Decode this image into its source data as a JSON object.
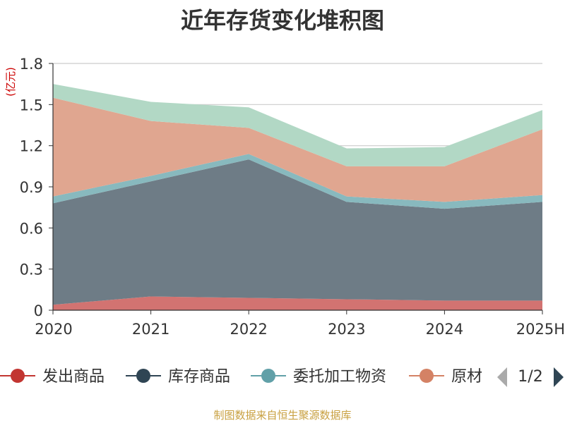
{
  "chart_data": {
    "type": "area",
    "stacked": true,
    "title": "近年存货变化堆积图",
    "y_unit": "(亿元)",
    "categories": [
      "2020",
      "2021",
      "2022",
      "2023",
      "2024",
      "2025H"
    ],
    "ylim": [
      0,
      1.8
    ],
    "yticks": [
      "0",
      "0.3",
      "0.6",
      "0.9",
      "1.2",
      "1.5",
      "1.8"
    ],
    "grid": true,
    "series": [
      {
        "name": "发出商品",
        "color": "#d27371",
        "values": [
          0.04,
          0.1,
          0.09,
          0.08,
          0.07,
          0.07
        ]
      },
      {
        "name": "库存商品",
        "color": "#6e7c86",
        "values": [
          0.74,
          0.84,
          1.01,
          0.71,
          0.67,
          0.72
        ]
      },
      {
        "name": "委托加工物资",
        "color": "#88b9be",
        "values": [
          0.05,
          0.04,
          0.04,
          0.04,
          0.05,
          0.05
        ]
      },
      {
        "name": "原材料",
        "color": "#e0a690",
        "values": [
          0.72,
          0.4,
          0.19,
          0.22,
          0.26,
          0.48
        ]
      },
      {
        "name": "",
        "color": "#b2d8c5",
        "values": [
          0.1,
          0.14,
          0.15,
          0.13,
          0.14,
          0.14
        ]
      }
    ],
    "legend_visible_labels": [
      "发出商品",
      "库存商品",
      "委托加工物资",
      "原材"
    ],
    "legend_colors": [
      "#c23531",
      "#2f4554",
      "#61a0a8",
      "#d48265"
    ],
    "legend_page": "1/2",
    "legend_placement": "bottom"
  },
  "source_note": "制图数据来自恒生聚源数据库"
}
